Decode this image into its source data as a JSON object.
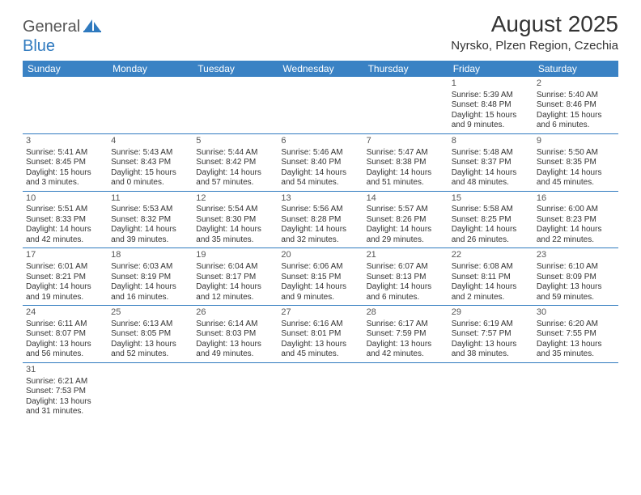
{
  "logo": {
    "text1": "General",
    "text2": "Blue",
    "icon_color": "#2f7abf"
  },
  "title": {
    "month_year": "August 2025",
    "location": "Nyrsko, Plzen Region, Czechia"
  },
  "header_bg": "#3a82c4",
  "header_fg": "#ffffff",
  "border_color": "#2f7abf",
  "day_headers": [
    "Sunday",
    "Monday",
    "Tuesday",
    "Wednesday",
    "Thursday",
    "Friday",
    "Saturday"
  ],
  "weeks": [
    [
      null,
      null,
      null,
      null,
      null,
      {
        "n": "1",
        "sr": "5:39 AM",
        "ss": "8:48 PM",
        "dl": "15 hours and 9 minutes."
      },
      {
        "n": "2",
        "sr": "5:40 AM",
        "ss": "8:46 PM",
        "dl": "15 hours and 6 minutes."
      }
    ],
    [
      {
        "n": "3",
        "sr": "5:41 AM",
        "ss": "8:45 PM",
        "dl": "15 hours and 3 minutes."
      },
      {
        "n": "4",
        "sr": "5:43 AM",
        "ss": "8:43 PM",
        "dl": "15 hours and 0 minutes."
      },
      {
        "n": "5",
        "sr": "5:44 AM",
        "ss": "8:42 PM",
        "dl": "14 hours and 57 minutes."
      },
      {
        "n": "6",
        "sr": "5:46 AM",
        "ss": "8:40 PM",
        "dl": "14 hours and 54 minutes."
      },
      {
        "n": "7",
        "sr": "5:47 AM",
        "ss": "8:38 PM",
        "dl": "14 hours and 51 minutes."
      },
      {
        "n": "8",
        "sr": "5:48 AM",
        "ss": "8:37 PM",
        "dl": "14 hours and 48 minutes."
      },
      {
        "n": "9",
        "sr": "5:50 AM",
        "ss": "8:35 PM",
        "dl": "14 hours and 45 minutes."
      }
    ],
    [
      {
        "n": "10",
        "sr": "5:51 AM",
        "ss": "8:33 PM",
        "dl": "14 hours and 42 minutes."
      },
      {
        "n": "11",
        "sr": "5:53 AM",
        "ss": "8:32 PM",
        "dl": "14 hours and 39 minutes."
      },
      {
        "n": "12",
        "sr": "5:54 AM",
        "ss": "8:30 PM",
        "dl": "14 hours and 35 minutes."
      },
      {
        "n": "13",
        "sr": "5:56 AM",
        "ss": "8:28 PM",
        "dl": "14 hours and 32 minutes."
      },
      {
        "n": "14",
        "sr": "5:57 AM",
        "ss": "8:26 PM",
        "dl": "14 hours and 29 minutes."
      },
      {
        "n": "15",
        "sr": "5:58 AM",
        "ss": "8:25 PM",
        "dl": "14 hours and 26 minutes."
      },
      {
        "n": "16",
        "sr": "6:00 AM",
        "ss": "8:23 PM",
        "dl": "14 hours and 22 minutes."
      }
    ],
    [
      {
        "n": "17",
        "sr": "6:01 AM",
        "ss": "8:21 PM",
        "dl": "14 hours and 19 minutes."
      },
      {
        "n": "18",
        "sr": "6:03 AM",
        "ss": "8:19 PM",
        "dl": "14 hours and 16 minutes."
      },
      {
        "n": "19",
        "sr": "6:04 AM",
        "ss": "8:17 PM",
        "dl": "14 hours and 12 minutes."
      },
      {
        "n": "20",
        "sr": "6:06 AM",
        "ss": "8:15 PM",
        "dl": "14 hours and 9 minutes."
      },
      {
        "n": "21",
        "sr": "6:07 AM",
        "ss": "8:13 PM",
        "dl": "14 hours and 6 minutes."
      },
      {
        "n": "22",
        "sr": "6:08 AM",
        "ss": "8:11 PM",
        "dl": "14 hours and 2 minutes."
      },
      {
        "n": "23",
        "sr": "6:10 AM",
        "ss": "8:09 PM",
        "dl": "13 hours and 59 minutes."
      }
    ],
    [
      {
        "n": "24",
        "sr": "6:11 AM",
        "ss": "8:07 PM",
        "dl": "13 hours and 56 minutes."
      },
      {
        "n": "25",
        "sr": "6:13 AM",
        "ss": "8:05 PM",
        "dl": "13 hours and 52 minutes."
      },
      {
        "n": "26",
        "sr": "6:14 AM",
        "ss": "8:03 PM",
        "dl": "13 hours and 49 minutes."
      },
      {
        "n": "27",
        "sr": "6:16 AM",
        "ss": "8:01 PM",
        "dl": "13 hours and 45 minutes."
      },
      {
        "n": "28",
        "sr": "6:17 AM",
        "ss": "7:59 PM",
        "dl": "13 hours and 42 minutes."
      },
      {
        "n": "29",
        "sr": "6:19 AM",
        "ss": "7:57 PM",
        "dl": "13 hours and 38 minutes."
      },
      {
        "n": "30",
        "sr": "6:20 AM",
        "ss": "7:55 PM",
        "dl": "13 hours and 35 minutes."
      }
    ],
    [
      {
        "n": "31",
        "sr": "6:21 AM",
        "ss": "7:53 PM",
        "dl": "13 hours and 31 minutes."
      },
      null,
      null,
      null,
      null,
      null,
      null
    ]
  ],
  "labels": {
    "sunrise": "Sunrise: ",
    "sunset": "Sunset: ",
    "daylight": "Daylight: "
  }
}
